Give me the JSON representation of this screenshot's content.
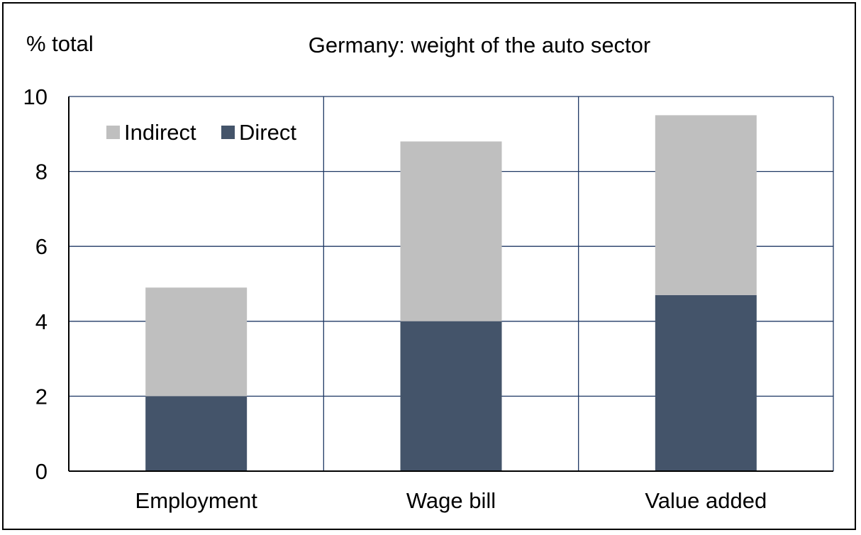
{
  "chart_data": {
    "type": "bar",
    "stacked": true,
    "title": "Germany: weight of the auto sector",
    "ylabel": "% total",
    "categories": [
      "Employment",
      "Wage bill",
      "Value added"
    ],
    "series": [
      {
        "name": "Direct",
        "values": [
          2.0,
          4.0,
          4.7
        ],
        "color": "#44546A"
      },
      {
        "name": "Indirect",
        "values": [
          2.9,
          4.8,
          4.8
        ],
        "color": "#BFBFBF"
      }
    ],
    "ylim": [
      0,
      10
    ],
    "yticks": [
      0,
      2,
      4,
      6,
      8,
      10
    ],
    "legend": {
      "position": "top-left",
      "order": [
        "Indirect",
        "Direct"
      ]
    },
    "grid": true,
    "gridline_color": "#1F3864"
  }
}
